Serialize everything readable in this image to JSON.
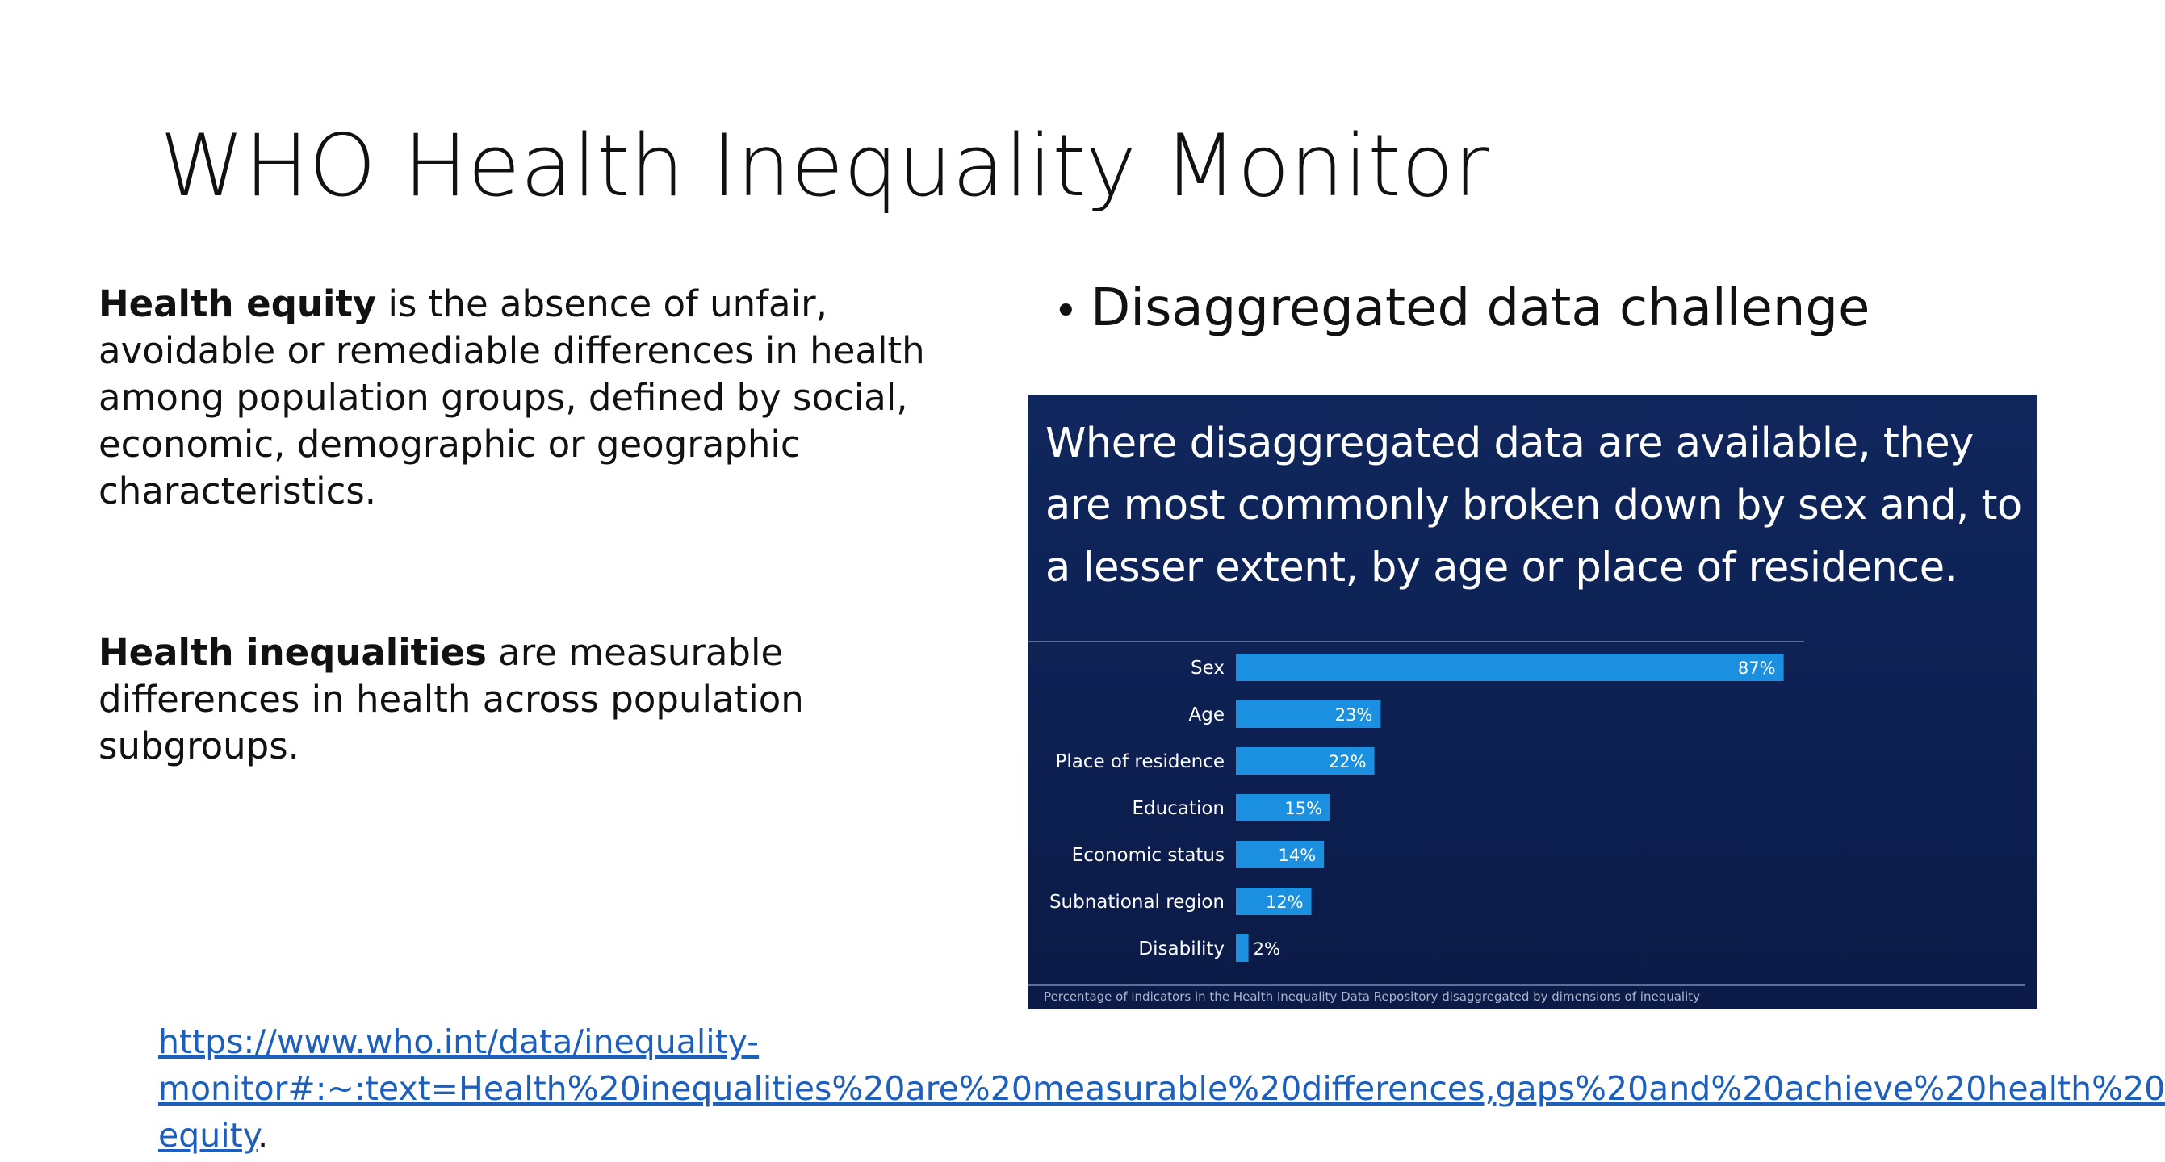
{
  "slide": {
    "title": "WHO Health Inequality Monitor"
  },
  "definitions": {
    "equity": {
      "term": "Health equity",
      "text": " is the absence of unfair, avoidable or remediable differences in health among population groups, defined by social, economic, demographic or geographic characteristics."
    },
    "inequalities": {
      "term": "Health inequalities",
      "text": " are measurable differences in health across population subgroups."
    }
  },
  "bullet": {
    "text": "Disaggregated data challenge"
  },
  "panel": {
    "headline": "Where disaggregated data are available, they are most commonly broken down by sex and, to a lesser extent, by age or place of residence.",
    "footnote": "Percentage of indicators in the Health Inequality Data Repository disaggregated by dimensions of inequality",
    "bar_color": "#1b8fe0",
    "label_color": "#ffffff"
  },
  "chart_data": {
    "type": "bar",
    "orientation": "horizontal",
    "categories": [
      "Sex",
      "Age",
      "Place of residence",
      "Education",
      "Economic status",
      "Subnational region",
      "Disability"
    ],
    "values": [
      87,
      23,
      22,
      15,
      14,
      12,
      2
    ],
    "value_labels": [
      "87%",
      "23%",
      "22%",
      "15%",
      "14%",
      "12%",
      "2%"
    ],
    "unit": "%",
    "xlim": [
      0,
      100
    ],
    "grid": false
  },
  "source": {
    "lines": [
      "https://www.who.int/data/inequality-",
      "monitor#:~:text=Health%20inequalities%20are%20measurable%20differences,gaps%20and%20achieve%20health%20",
      "equity"
    ],
    "trailing": "."
  }
}
